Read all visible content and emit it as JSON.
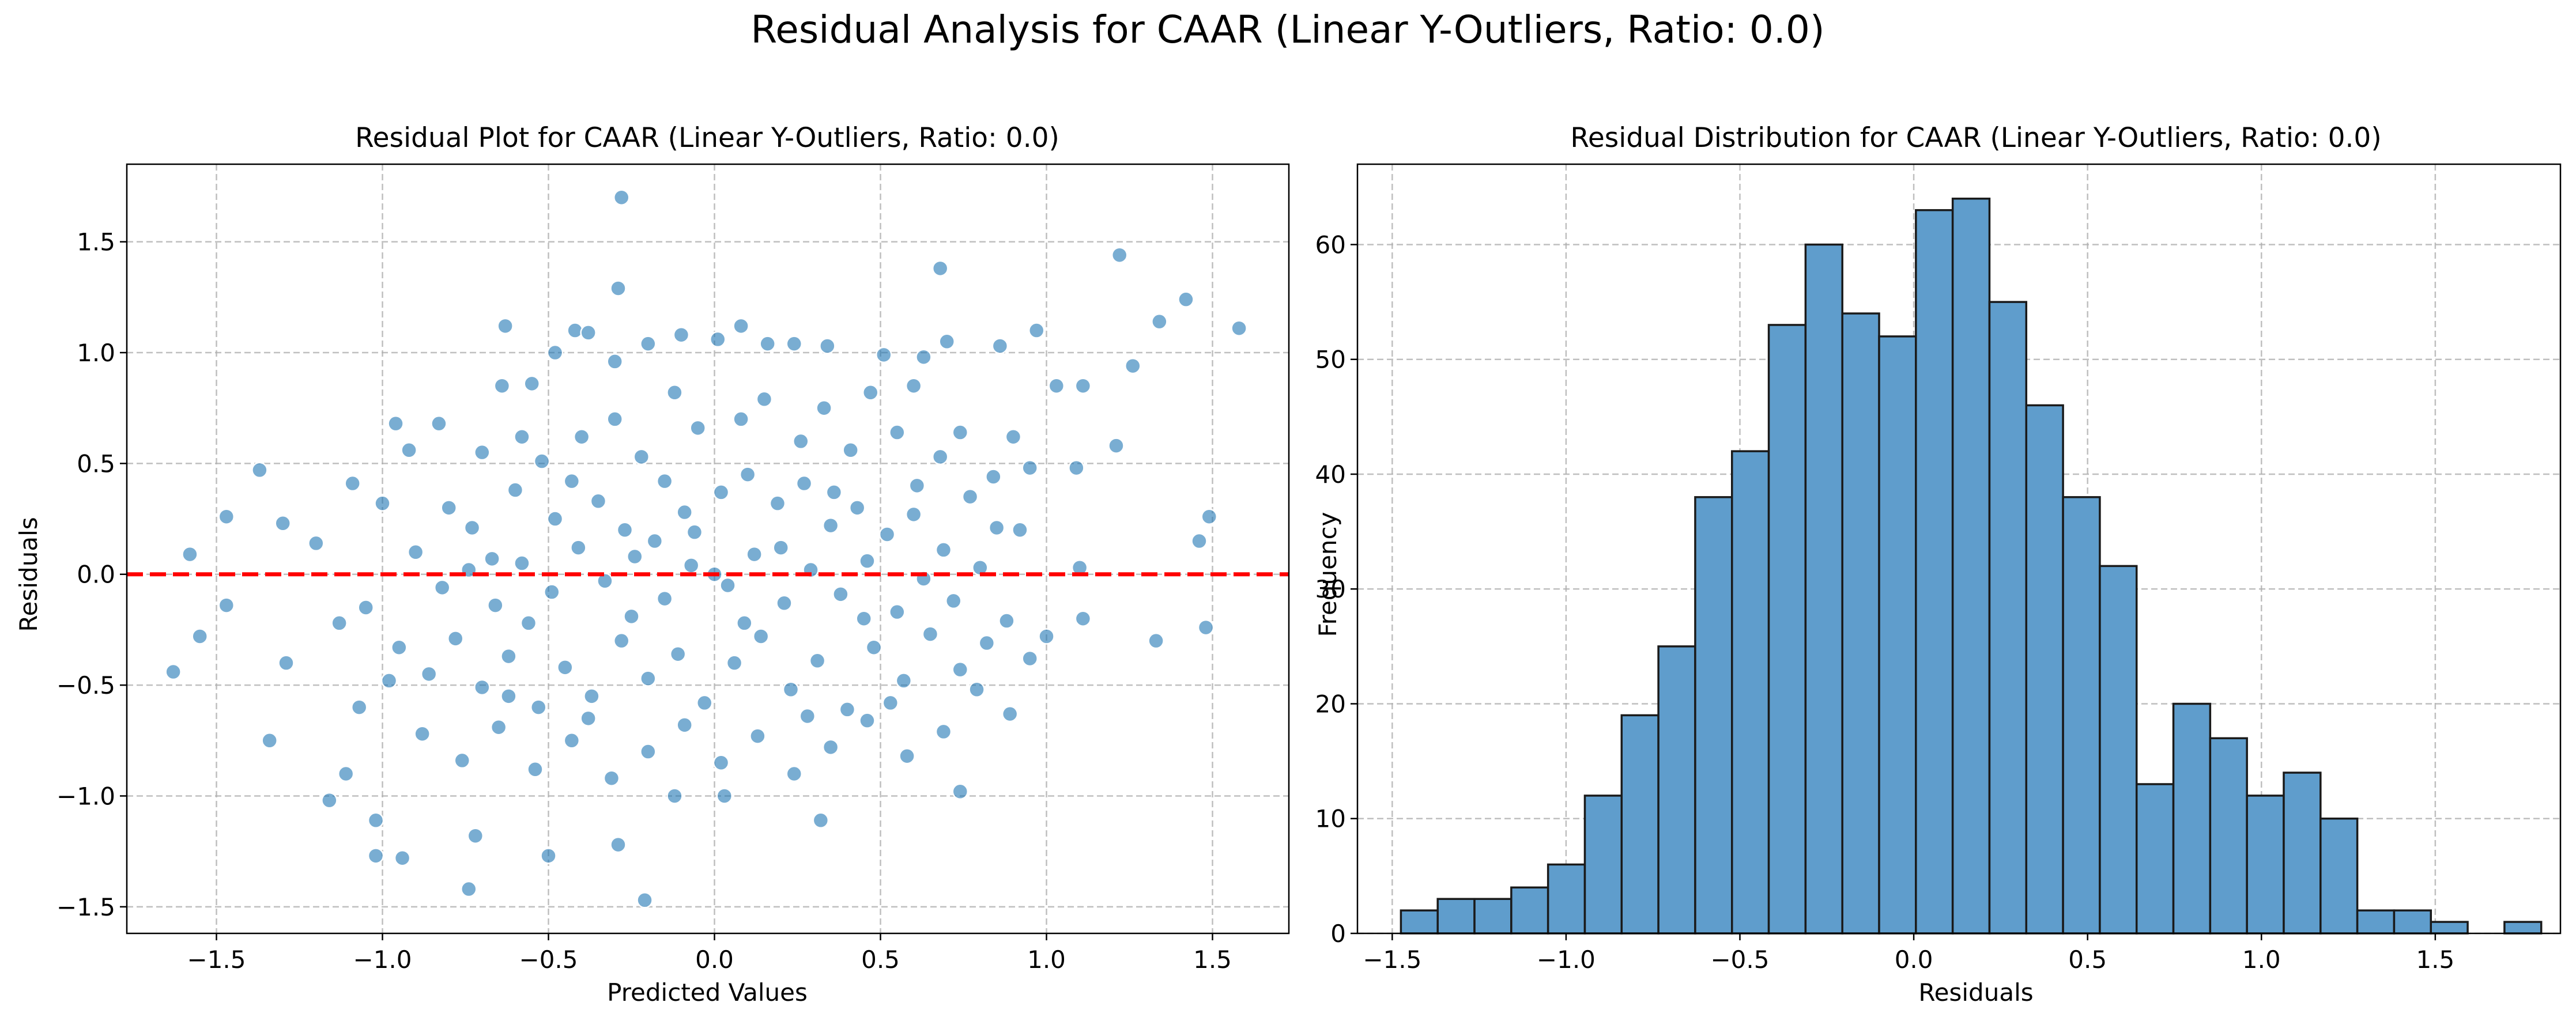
{
  "figure": {
    "suptitle": "Residual Analysis for CAAR (Linear Y-Outliers, Ratio: 0.0)"
  },
  "chart_data": [
    {
      "type": "scatter",
      "title": "Residual Plot for CAAR (Linear Y-Outliers, Ratio: 0.0)",
      "xlabel": "Predicted Values",
      "ylabel": "Residuals",
      "xlim": [
        -1.77,
        1.73
      ],
      "ylim": [
        -1.62,
        1.85
      ],
      "xticks": [
        -1.5,
        -1.0,
        -0.5,
        0.0,
        0.5,
        1.0,
        1.5
      ],
      "xtick_labels": [
        "−1.5",
        "−1.0",
        "−0.5",
        "0.0",
        "0.5",
        "1.0",
        "1.5"
      ],
      "yticks": [
        -1.5,
        -1.0,
        -0.5,
        0.0,
        0.5,
        1.0,
        1.5
      ],
      "ytick_labels": [
        "−1.5",
        "−1.0",
        "−0.5",
        "0.0",
        "0.5",
        "1.0",
        "1.5"
      ],
      "grid": true,
      "reference_line": {
        "y": 0.0,
        "color": "#ff0000",
        "style": "dashed"
      },
      "point_color": "#1f77b4",
      "points": [
        [
          -0.28,
          1.7
        ],
        [
          1.22,
          1.44
        ],
        [
          1.42,
          1.24
        ],
        [
          -0.29,
          1.29
        ],
        [
          0.68,
          1.38
        ],
        [
          1.58,
          1.11
        ],
        [
          1.34,
          1.14
        ],
        [
          0.97,
          1.1
        ],
        [
          1.03,
          0.85
        ],
        [
          1.11,
          0.85
        ],
        [
          1.26,
          0.94
        ],
        [
          1.09,
          0.48
        ],
        [
          1.21,
          0.58
        ],
        [
          1.49,
          0.26
        ],
        [
          1.46,
          0.15
        ],
        [
          1.48,
          -0.24
        ],
        [
          1.33,
          -0.3
        ],
        [
          1.11,
          -0.2
        ],
        [
          1.1,
          0.03
        ],
        [
          1.0,
          -0.28
        ],
        [
          0.95,
          -0.38
        ],
        [
          0.89,
          -0.63
        ],
        [
          0.74,
          -0.98
        ],
        [
          -1.63,
          -0.44
        ],
        [
          -1.55,
          -0.28
        ],
        [
          -1.58,
          0.09
        ],
        [
          -1.37,
          0.47
        ],
        [
          -1.47,
          0.26
        ],
        [
          -1.3,
          0.23
        ],
        [
          -1.47,
          -0.14
        ],
        [
          -1.34,
          -0.75
        ],
        [
          -1.29,
          -0.4
        ],
        [
          -1.16,
          -1.02
        ],
        [
          -1.11,
          -0.9
        ],
        [
          -1.02,
          -1.11
        ],
        [
          -1.02,
          -1.27
        ],
        [
          -0.94,
          -1.28
        ],
        [
          -0.74,
          -1.42
        ],
        [
          -0.72,
          -1.18
        ],
        [
          -0.5,
          -1.27
        ],
        [
          -0.21,
          -1.47
        ],
        [
          -0.29,
          -1.22
        ],
        [
          0.32,
          -1.11
        ],
        [
          0.03,
          -1.0
        ],
        [
          -0.12,
          -1.0
        ],
        [
          -1.09,
          0.41
        ],
        [
          -0.96,
          0.68
        ],
        [
          -0.92,
          0.56
        ],
        [
          -0.83,
          0.68
        ],
        [
          -0.64,
          0.85
        ],
        [
          -0.63,
          1.12
        ],
        [
          -0.55,
          0.86
        ],
        [
          -0.48,
          1.0
        ],
        [
          -0.42,
          1.1
        ],
        [
          -0.38,
          1.09
        ],
        [
          -0.3,
          0.96
        ],
        [
          -0.2,
          1.04
        ],
        [
          -0.1,
          1.08
        ],
        [
          0.01,
          1.06
        ],
        [
          0.08,
          1.12
        ],
        [
          0.16,
          1.04
        ],
        [
          0.24,
          1.04
        ],
        [
          0.34,
          1.03
        ],
        [
          0.51,
          0.99
        ],
        [
          0.63,
          0.98
        ],
        [
          0.7,
          1.05
        ],
        [
          0.86,
          1.03
        ],
        [
          0.6,
          0.85
        ],
        [
          0.74,
          0.64
        ],
        [
          -0.8,
          0.3
        ],
        [
          -0.73,
          0.21
        ],
        [
          -0.67,
          0.07
        ],
        [
          -0.6,
          0.38
        ],
        [
          -0.52,
          0.51
        ],
        [
          -0.43,
          0.42
        ],
        [
          -0.35,
          0.33
        ],
        [
          -0.27,
          0.2
        ],
        [
          -0.18,
          0.15
        ],
        [
          -0.09,
          0.28
        ],
        [
          0.02,
          0.37
        ],
        [
          0.1,
          0.45
        ],
        [
          0.19,
          0.32
        ],
        [
          0.27,
          0.41
        ],
        [
          0.35,
          0.22
        ],
        [
          0.43,
          0.3
        ],
        [
          0.52,
          0.18
        ],
        [
          0.6,
          0.27
        ],
        [
          0.69,
          0.11
        ],
        [
          0.77,
          0.35
        ],
        [
          0.85,
          0.21
        ],
        [
          -0.9,
          0.1
        ],
        [
          -0.82,
          -0.06
        ],
        [
          -0.74,
          0.02
        ],
        [
          -0.66,
          -0.14
        ],
        [
          -0.58,
          0.05
        ],
        [
          -0.49,
          -0.08
        ],
        [
          -0.41,
          0.12
        ],
        [
          -0.33,
          -0.03
        ],
        [
          -0.24,
          0.08
        ],
        [
          -0.15,
          -0.11
        ],
        [
          -0.07,
          0.04
        ],
        [
          0.04,
          -0.05
        ],
        [
          0.12,
          0.09
        ],
        [
          0.21,
          -0.13
        ],
        [
          0.29,
          0.02
        ],
        [
          0.38,
          -0.09
        ],
        [
          0.46,
          0.06
        ],
        [
          0.55,
          -0.17
        ],
        [
          0.63,
          -0.02
        ],
        [
          0.72,
          -0.12
        ],
        [
          0.8,
          0.03
        ],
        [
          0.88,
          -0.21
        ],
        [
          -0.95,
          -0.33
        ],
        [
          -0.86,
          -0.45
        ],
        [
          -0.78,
          -0.29
        ],
        [
          -0.7,
          -0.51
        ],
        [
          -0.62,
          -0.37
        ],
        [
          -0.53,
          -0.6
        ],
        [
          -0.45,
          -0.42
        ],
        [
          -0.37,
          -0.55
        ],
        [
          -0.28,
          -0.3
        ],
        [
          -0.2,
          -0.47
        ],
        [
          -0.11,
          -0.36
        ],
        [
          -0.03,
          -0.58
        ],
        [
          0.06,
          -0.4
        ],
        [
          0.14,
          -0.28
        ],
        [
          0.23,
          -0.52
        ],
        [
          0.31,
          -0.39
        ],
        [
          0.4,
          -0.61
        ],
        [
          0.48,
          -0.33
        ],
        [
          0.57,
          -0.48
        ],
        [
          0.65,
          -0.27
        ],
        [
          0.74,
          -0.43
        ],
        [
          0.82,
          -0.31
        ],
        [
          -0.88,
          -0.72
        ],
        [
          -0.76,
          -0.84
        ],
        [
          -0.65,
          -0.69
        ],
        [
          -0.54,
          -0.88
        ],
        [
          -0.43,
          -0.75
        ],
        [
          -0.31,
          -0.92
        ],
        [
          -0.2,
          -0.8
        ],
        [
          -0.09,
          -0.68
        ],
        [
          0.02,
          -0.85
        ],
        [
          0.13,
          -0.73
        ],
        [
          0.24,
          -0.9
        ],
        [
          0.35,
          -0.78
        ],
        [
          0.46,
          -0.66
        ],
        [
          0.58,
          -0.82
        ],
        [
          0.69,
          -0.71
        ],
        [
          -1.05,
          -0.15
        ],
        [
          -1.13,
          -0.22
        ],
        [
          -1.2,
          0.14
        ],
        [
          -1.0,
          0.32
        ],
        [
          -0.98,
          -0.48
        ],
        [
          -1.07,
          -0.6
        ],
        [
          0.92,
          0.2
        ],
        [
          0.95,
          0.48
        ],
        [
          0.9,
          0.62
        ],
        [
          0.84,
          0.44
        ],
        [
          -0.4,
          0.62
        ],
        [
          -0.22,
          0.53
        ],
        [
          -0.05,
          0.66
        ],
        [
          0.15,
          0.79
        ],
        [
          0.26,
          0.6
        ],
        [
          0.41,
          0.56
        ],
        [
          0.55,
          0.64
        ],
        [
          0.68,
          0.53
        ],
        [
          -0.58,
          0.62
        ],
        [
          -0.7,
          0.55
        ],
        [
          -0.12,
          0.82
        ],
        [
          0.08,
          0.7
        ],
        [
          0.33,
          0.75
        ],
        [
          0.47,
          0.82
        ],
        [
          -0.3,
          0.7
        ],
        [
          -0.48,
          0.25
        ],
        [
          -0.06,
          0.19
        ],
        [
          0.36,
          0.37
        ],
        [
          0.61,
          0.4
        ],
        [
          -0.25,
          -0.19
        ],
        [
          0.09,
          -0.22
        ],
        [
          0.45,
          -0.2
        ],
        [
          -0.56,
          -0.22
        ],
        [
          0.2,
          0.12
        ],
        [
          -0.15,
          0.42
        ],
        [
          0.0,
          0.0
        ],
        [
          0.28,
          -0.64
        ],
        [
          -0.38,
          -0.65
        ],
        [
          0.53,
          -0.58
        ],
        [
          -0.62,
          -0.55
        ],
        [
          0.79,
          -0.52
        ]
      ]
    },
    {
      "type": "bar",
      "title": "Residual Distribution for CAAR (Linear Y-Outliers, Ratio: 0.0)",
      "xlabel": "Residuals",
      "ylabel": "Frequency",
      "xlim": [
        -1.6,
        1.86
      ],
      "ylim": [
        0,
        67
      ],
      "xticks": [
        -1.5,
        -1.0,
        -0.5,
        0.0,
        0.5,
        1.0,
        1.5
      ],
      "xtick_labels": [
        "−1.5",
        "−1.0",
        "−0.5",
        "0.0",
        "0.5",
        "1.0",
        "1.5"
      ],
      "yticks": [
        0,
        10,
        20,
        30,
        40,
        50,
        60
      ],
      "ytick_labels": [
        "0",
        "10",
        "20",
        "30",
        "40",
        "50",
        "60"
      ],
      "grid": true,
      "bar_color": "#5f9dcc",
      "edge_color": "#1a1a1a",
      "bin_start": -1.475,
      "bin_width": 0.1058,
      "counts": [
        2,
        3,
        3,
        4,
        6,
        12,
        19,
        25,
        38,
        42,
        53,
        60,
        54,
        52,
        63,
        64,
        55,
        46,
        38,
        32,
        13,
        20,
        17,
        12,
        14,
        10,
        2,
        2,
        1,
        0,
        1
      ]
    }
  ]
}
